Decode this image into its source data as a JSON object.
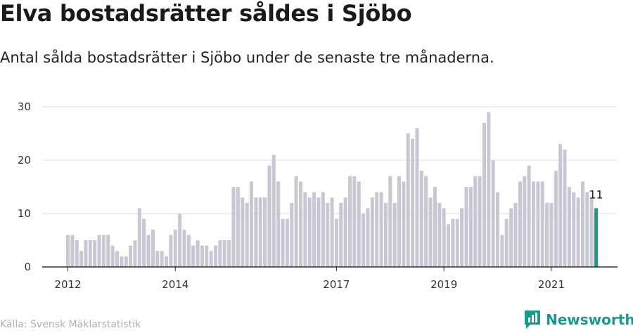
{
  "title": "Elva bostadsrätter såldes i Sjöbo",
  "subtitle": "Antal sålda bostadsrätter i Sjöbo under de senaste tre månaderna.",
  "source": "Källa: Svensk Mäklarstatistik",
  "brand": {
    "name": "Newsworthy",
    "icon": "newsworthy-logo-icon"
  },
  "colors": {
    "bar": "#c8c7d3",
    "highlight": "#1b9a8c",
    "grid": "#dddddd",
    "axis": "#333333"
  },
  "chart_data": {
    "type": "bar",
    "title": "Elva bostadsrätter såldes i Sjöbo",
    "xlabel": "",
    "ylabel": "",
    "ylim": [
      0,
      30
    ],
    "yticks": [
      0,
      10,
      20,
      30
    ],
    "grid": true,
    "start": "2012-01",
    "xtick_labels": [
      {
        "label": "2012",
        "index": 0
      },
      {
        "label": "2014",
        "index": 24
      },
      {
        "label": "2017",
        "index": 60
      },
      {
        "label": "2019",
        "index": 84
      },
      {
        "label": "2021",
        "index": 108
      }
    ],
    "values": [
      6,
      6,
      5,
      3,
      5,
      5,
      5,
      6,
      6,
      6,
      4,
      3,
      2,
      2,
      4,
      5,
      11,
      9,
      6,
      7,
      3,
      3,
      2,
      6,
      7,
      10,
      7,
      6,
      4,
      5,
      4,
      4,
      3,
      4,
      5,
      5,
      5,
      15,
      15,
      13,
      12,
      16,
      13,
      13,
      13,
      19,
      21,
      16,
      9,
      9,
      12,
      17,
      16,
      14,
      13,
      14,
      13,
      14,
      12,
      13,
      9,
      12,
      13,
      17,
      17,
      16,
      10,
      11,
      13,
      14,
      14,
      12,
      17,
      12,
      17,
      16,
      25,
      24,
      26,
      18,
      17,
      13,
      15,
      12,
      11,
      8,
      9,
      9,
      11,
      15,
      15,
      17,
      17,
      27,
      29,
      20,
      14,
      6,
      9,
      11,
      12,
      16,
      17,
      19,
      16,
      16,
      16,
      12,
      12,
      18,
      23,
      22,
      15,
      14,
      13,
      16,
      14,
      13,
      11
    ],
    "highlight_index": 118,
    "highlight_label": "11"
  }
}
